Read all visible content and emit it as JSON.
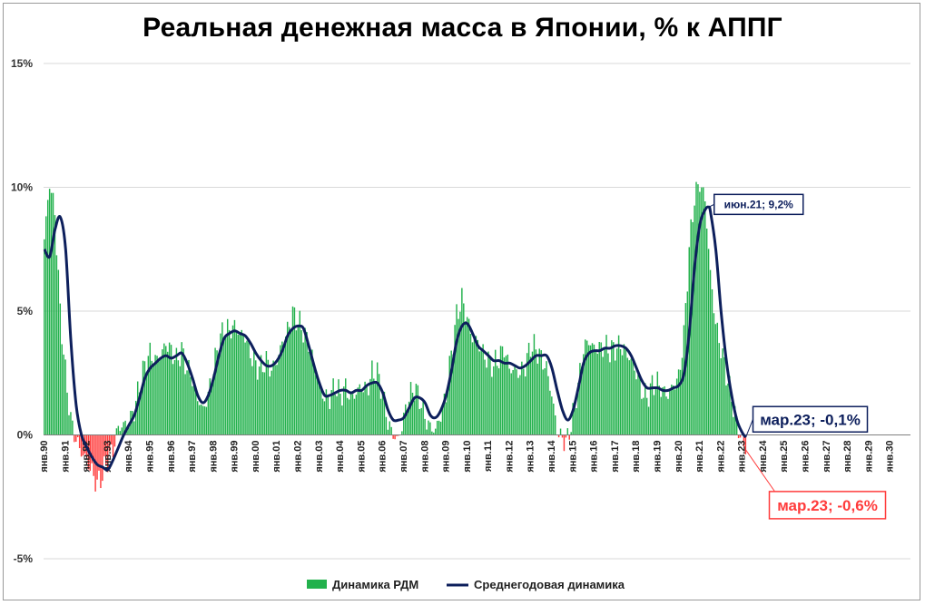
{
  "chart_data": {
    "type": "bar+line",
    "title": "Реальная денежная масса в Японии, % к АППГ",
    "y_unit": "%",
    "ylim": [
      -5,
      15
    ],
    "y_ticks": [
      {
        "value": 15,
        "label": "15%"
      },
      {
        "value": 10,
        "label": "10%"
      },
      {
        "value": 5,
        "label": "5%"
      },
      {
        "value": 0,
        "label": "0%"
      },
      {
        "value": -5,
        "label": "-5%"
      }
    ],
    "x_start": "1990-01",
    "x_end": "2030-12",
    "x_tick_labels": [
      "янв.90",
      "янв.91",
      "янв.92",
      "янв.93",
      "янв.94",
      "янв.95",
      "янв.96",
      "янв.97",
      "янв.98",
      "янв.99",
      "янв.00",
      "янв.01",
      "янв.02",
      "янв.03",
      "янв.04",
      "янв.05",
      "янв.06",
      "янв.07",
      "янв.08",
      "янв.09",
      "янв.10",
      "янв.11",
      "янв.12",
      "янв.13",
      "янв.14",
      "янв.15",
      "янв.16",
      "янв.17",
      "янв.18",
      "янв.19",
      "янв.20",
      "янв.21",
      "янв.22",
      "янв.23",
      "янв.24",
      "янв.25",
      "янв.26",
      "янв.27",
      "янв.28",
      "янв.29",
      "янв.30"
    ],
    "grid": true,
    "legend_position": "bottom",
    "colors": {
      "positive_bar": "#22b14c",
      "negative_bar": "#ff3b3b",
      "line": "#0d1f5c",
      "grid": "#d9d9d9"
    },
    "bar_anchors": [
      [
        "1990-01",
        7.9
      ],
      [
        "1990-04",
        10.2
      ],
      [
        "1990-07",
        9.0
      ],
      [
        "1990-10",
        5.0
      ],
      [
        "1991-01",
        2.5
      ],
      [
        "1991-04",
        0.6
      ],
      [
        "1991-07",
        -0.2
      ],
      [
        "1991-10",
        -0.7
      ],
      [
        "1992-01",
        -1.0
      ],
      [
        "1992-04",
        -1.5
      ],
      [
        "1992-07",
        -2.0
      ],
      [
        "1992-10",
        -1.6
      ],
      [
        "1993-01",
        -1.0
      ],
      [
        "1993-04",
        -0.6
      ],
      [
        "1993-07",
        0.3
      ],
      [
        "1993-10",
        0.4
      ],
      [
        "1994-01",
        0.5
      ],
      [
        "1994-04",
        1.0
      ],
      [
        "1994-07",
        2.0
      ],
      [
        "1994-10",
        2.8
      ],
      [
        "1995-01",
        3.3
      ],
      [
        "1995-04",
        3.0
      ],
      [
        "1995-07",
        3.2
      ],
      [
        "1995-10",
        3.7
      ],
      [
        "1996-01",
        3.4
      ],
      [
        "1996-04",
        3.0
      ],
      [
        "1996-07",
        3.4
      ],
      [
        "1996-10",
        2.7
      ],
      [
        "1997-01",
        2.3
      ],
      [
        "1997-04",
        1.5
      ],
      [
        "1997-07",
        1.0
      ],
      [
        "1997-10",
        1.6
      ],
      [
        "1998-01",
        2.7
      ],
      [
        "1998-04",
        3.7
      ],
      [
        "1998-07",
        4.3
      ],
      [
        "1998-10",
        4.2
      ],
      [
        "1999-01",
        4.4
      ],
      [
        "1999-04",
        4.1
      ],
      [
        "1999-07",
        4.0
      ],
      [
        "1999-10",
        3.3
      ],
      [
        "2000-01",
        2.8
      ],
      [
        "2000-04",
        2.7
      ],
      [
        "2000-07",
        3.0
      ],
      [
        "2000-10",
        2.6
      ],
      [
        "2001-01",
        3.0
      ],
      [
        "2001-04",
        3.7
      ],
      [
        "2001-07",
        4.2
      ],
      [
        "2001-10",
        4.9
      ],
      [
        "2002-01",
        4.6
      ],
      [
        "2002-04",
        4.2
      ],
      [
        "2002-07",
        3.7
      ],
      [
        "2002-10",
        2.9
      ],
      [
        "2003-01",
        2.0
      ],
      [
        "2003-04",
        1.5
      ],
      [
        "2003-07",
        1.5
      ],
      [
        "2003-10",
        2.0
      ],
      [
        "2004-01",
        1.6
      ],
      [
        "2004-04",
        1.9
      ],
      [
        "2004-07",
        1.5
      ],
      [
        "2004-10",
        1.7
      ],
      [
        "2005-01",
        2.0
      ],
      [
        "2005-04",
        1.8
      ],
      [
        "2005-07",
        2.5
      ],
      [
        "2005-10",
        2.5
      ],
      [
        "2006-01",
        1.7
      ],
      [
        "2006-04",
        0.5
      ],
      [
        "2006-07",
        0.0
      ],
      [
        "2006-10",
        -0.2
      ],
      [
        "2007-01",
        0.7
      ],
      [
        "2007-04",
        1.5
      ],
      [
        "2007-07",
        1.9
      ],
      [
        "2007-10",
        1.5
      ],
      [
        "2008-01",
        0.7
      ],
      [
        "2008-04",
        0.3
      ],
      [
        "2008-07",
        0.2
      ],
      [
        "2008-10",
        0.8
      ],
      [
        "2009-01",
        1.6
      ],
      [
        "2009-04",
        3.3
      ],
      [
        "2009-07",
        4.8
      ],
      [
        "2009-10",
        5.5
      ],
      [
        "2010-01",
        4.7
      ],
      [
        "2010-04",
        3.9
      ],
      [
        "2010-07",
        3.8
      ],
      [
        "2010-10",
        3.3
      ],
      [
        "2011-01",
        3.0
      ],
      [
        "2011-04",
        2.8
      ],
      [
        "2011-07",
        3.1
      ],
      [
        "2011-10",
        3.5
      ],
      [
        "2012-01",
        2.7
      ],
      [
        "2012-04",
        2.6
      ],
      [
        "2012-07",
        2.5
      ],
      [
        "2012-10",
        2.8
      ],
      [
        "2013-01",
        3.6
      ],
      [
        "2013-04",
        3.5
      ],
      [
        "2013-07",
        3.1
      ],
      [
        "2013-10",
        2.7
      ],
      [
        "2014-01",
        1.6
      ],
      [
        "2014-04",
        0.2
      ],
      [
        "2014-07",
        -0.2
      ],
      [
        "2014-10",
        -0.2
      ],
      [
        "2015-01",
        0.8
      ],
      [
        "2015-04",
        2.0
      ],
      [
        "2015-07",
        3.5
      ],
      [
        "2015-10",
        3.8
      ],
      [
        "2016-01",
        3.5
      ],
      [
        "2016-04",
        3.5
      ],
      [
        "2016-07",
        3.6
      ],
      [
        "2016-10",
        3.4
      ],
      [
        "2017-01",
        3.5
      ],
      [
        "2017-04",
        3.6
      ],
      [
        "2017-07",
        3.4
      ],
      [
        "2017-10",
        3.0
      ],
      [
        "2018-01",
        2.5
      ],
      [
        "2018-04",
        1.8
      ],
      [
        "2018-07",
        1.5
      ],
      [
        "2018-10",
        2.0
      ],
      [
        "2019-01",
        2.1
      ],
      [
        "2019-04",
        1.8
      ],
      [
        "2019-07",
        1.6
      ],
      [
        "2019-10",
        2.0
      ],
      [
        "2020-01",
        2.3
      ],
      [
        "2020-04",
        4.0
      ],
      [
        "2020-07",
        7.5
      ],
      [
        "2020-10",
        9.6
      ],
      [
        "2021-01",
        10.2
      ],
      [
        "2021-04",
        9.5
      ],
      [
        "2021-07",
        6.5
      ],
      [
        "2021-10",
        4.5
      ],
      [
        "2022-01",
        3.5
      ],
      [
        "2022-04",
        2.5
      ],
      [
        "2022-07",
        1.5
      ],
      [
        "2022-10",
        0.5
      ],
      [
        "2023-01",
        -0.3
      ],
      [
        "2023-03",
        -0.6
      ]
    ],
    "line_anchors": [
      [
        "1990-01",
        7.5
      ],
      [
        "1990-04",
        7.2
      ],
      [
        "1990-07",
        8.3
      ],
      [
        "1990-10",
        8.8
      ],
      [
        "1991-01",
        7.5
      ],
      [
        "1991-04",
        3.8
      ],
      [
        "1991-07",
        1.2
      ],
      [
        "1991-10",
        0.0
      ],
      [
        "1992-01",
        -0.5
      ],
      [
        "1992-04",
        -0.9
      ],
      [
        "1992-07",
        -1.2
      ],
      [
        "1992-10",
        -1.3
      ],
      [
        "1993-01",
        -1.4
      ],
      [
        "1993-04",
        -1.0
      ],
      [
        "1993-07",
        -0.5
      ],
      [
        "1993-10",
        0.0
      ],
      [
        "1994-01",
        0.4
      ],
      [
        "1994-04",
        0.8
      ],
      [
        "1994-07",
        1.5
      ],
      [
        "1994-10",
        2.3
      ],
      [
        "1995-01",
        2.7
      ],
      [
        "1995-04",
        2.9
      ],
      [
        "1995-07",
        3.1
      ],
      [
        "1995-10",
        3.2
      ],
      [
        "1996-01",
        3.1
      ],
      [
        "1996-04",
        3.2
      ],
      [
        "1996-07",
        3.3
      ],
      [
        "1996-10",
        2.9
      ],
      [
        "1997-01",
        2.3
      ],
      [
        "1997-04",
        1.6
      ],
      [
        "1997-07",
        1.3
      ],
      [
        "1997-10",
        1.6
      ],
      [
        "1998-01",
        2.3
      ],
      [
        "1998-04",
        3.2
      ],
      [
        "1998-07",
        3.9
      ],
      [
        "1998-10",
        4.1
      ],
      [
        "1999-01",
        4.2
      ],
      [
        "1999-04",
        4.1
      ],
      [
        "1999-07",
        4.0
      ],
      [
        "1999-10",
        3.7
      ],
      [
        "2000-01",
        3.3
      ],
      [
        "2000-04",
        3.0
      ],
      [
        "2000-07",
        2.8
      ],
      [
        "2000-10",
        2.8
      ],
      [
        "2001-01",
        3.0
      ],
      [
        "2001-04",
        3.4
      ],
      [
        "2001-07",
        4.0
      ],
      [
        "2001-10",
        4.3
      ],
      [
        "2002-01",
        4.4
      ],
      [
        "2002-04",
        4.3
      ],
      [
        "2002-07",
        3.6
      ],
      [
        "2002-10",
        2.8
      ],
      [
        "2003-01",
        2.1
      ],
      [
        "2003-04",
        1.6
      ],
      [
        "2003-07",
        1.6
      ],
      [
        "2003-10",
        1.7
      ],
      [
        "2004-01",
        1.8
      ],
      [
        "2004-04",
        1.8
      ],
      [
        "2004-07",
        1.7
      ],
      [
        "2004-10",
        1.8
      ],
      [
        "2005-01",
        1.8
      ],
      [
        "2005-04",
        2.0
      ],
      [
        "2005-07",
        2.1
      ],
      [
        "2005-10",
        2.1
      ],
      [
        "2006-01",
        1.7
      ],
      [
        "2006-04",
        1.0
      ],
      [
        "2006-07",
        0.6
      ],
      [
        "2006-10",
        0.6
      ],
      [
        "2007-01",
        0.7
      ],
      [
        "2007-04",
        1.1
      ],
      [
        "2007-07",
        1.5
      ],
      [
        "2007-10",
        1.5
      ],
      [
        "2008-01",
        1.3
      ],
      [
        "2008-04",
        0.8
      ],
      [
        "2008-07",
        0.7
      ],
      [
        "2008-10",
        1.0
      ],
      [
        "2009-01",
        1.6
      ],
      [
        "2009-04",
        2.6
      ],
      [
        "2009-07",
        3.8
      ],
      [
        "2009-10",
        4.4
      ],
      [
        "2010-01",
        4.5
      ],
      [
        "2010-04",
        4.1
      ],
      [
        "2010-07",
        3.6
      ],
      [
        "2010-10",
        3.4
      ],
      [
        "2011-01",
        3.2
      ],
      [
        "2011-04",
        3.0
      ],
      [
        "2011-07",
        3.0
      ],
      [
        "2011-10",
        2.9
      ],
      [
        "2012-01",
        2.9
      ],
      [
        "2012-04",
        2.8
      ],
      [
        "2012-07",
        2.7
      ],
      [
        "2012-10",
        2.8
      ],
      [
        "2013-01",
        3.0
      ],
      [
        "2013-04",
        3.2
      ],
      [
        "2013-07",
        3.2
      ],
      [
        "2013-10",
        3.2
      ],
      [
        "2014-01",
        2.7
      ],
      [
        "2014-04",
        1.8
      ],
      [
        "2014-07",
        1.0
      ],
      [
        "2014-10",
        0.6
      ],
      [
        "2015-01",
        1.0
      ],
      [
        "2015-04",
        1.9
      ],
      [
        "2015-07",
        2.9
      ],
      [
        "2015-10",
        3.3
      ],
      [
        "2016-01",
        3.4
      ],
      [
        "2016-04",
        3.4
      ],
      [
        "2016-07",
        3.5
      ],
      [
        "2016-10",
        3.5
      ],
      [
        "2017-01",
        3.6
      ],
      [
        "2017-04",
        3.6
      ],
      [
        "2017-07",
        3.5
      ],
      [
        "2017-10",
        3.2
      ],
      [
        "2018-01",
        2.7
      ],
      [
        "2018-04",
        2.2
      ],
      [
        "2018-07",
        1.9
      ],
      [
        "2018-10",
        1.9
      ],
      [
        "2019-01",
        1.9
      ],
      [
        "2019-04",
        1.8
      ],
      [
        "2019-07",
        1.8
      ],
      [
        "2019-10",
        1.9
      ],
      [
        "2020-01",
        2.0
      ],
      [
        "2020-04",
        2.5
      ],
      [
        "2020-07",
        4.2
      ],
      [
        "2020-10",
        6.8
      ],
      [
        "2021-01",
        8.5
      ],
      [
        "2021-04",
        9.1
      ],
      [
        "2021-06",
        9.2
      ],
      [
        "2021-07",
        9.0
      ],
      [
        "2021-10",
        7.5
      ],
      [
        "2022-01",
        5.0
      ],
      [
        "2022-04",
        3.0
      ],
      [
        "2022-07",
        1.6
      ],
      [
        "2022-10",
        0.6
      ],
      [
        "2023-01",
        0.1
      ],
      [
        "2023-03",
        -0.1
      ]
    ],
    "annotations": [
      {
        "text": "июн.21; 9,2%",
        "series": "line",
        "x": "2021-06",
        "y": 9.2
      },
      {
        "text": "мар.23; -0,1%",
        "series": "line",
        "x": "2023-03",
        "y": -0.1
      },
      {
        "text": "мар.23; -0,6%",
        "series": "bar",
        "x": "2023-03",
        "y": -0.6
      }
    ],
    "legend": [
      {
        "label": "Динамика РДМ",
        "marker": "bar"
      },
      {
        "label": "Среднегодовая динамика",
        "marker": "line"
      }
    ]
  }
}
